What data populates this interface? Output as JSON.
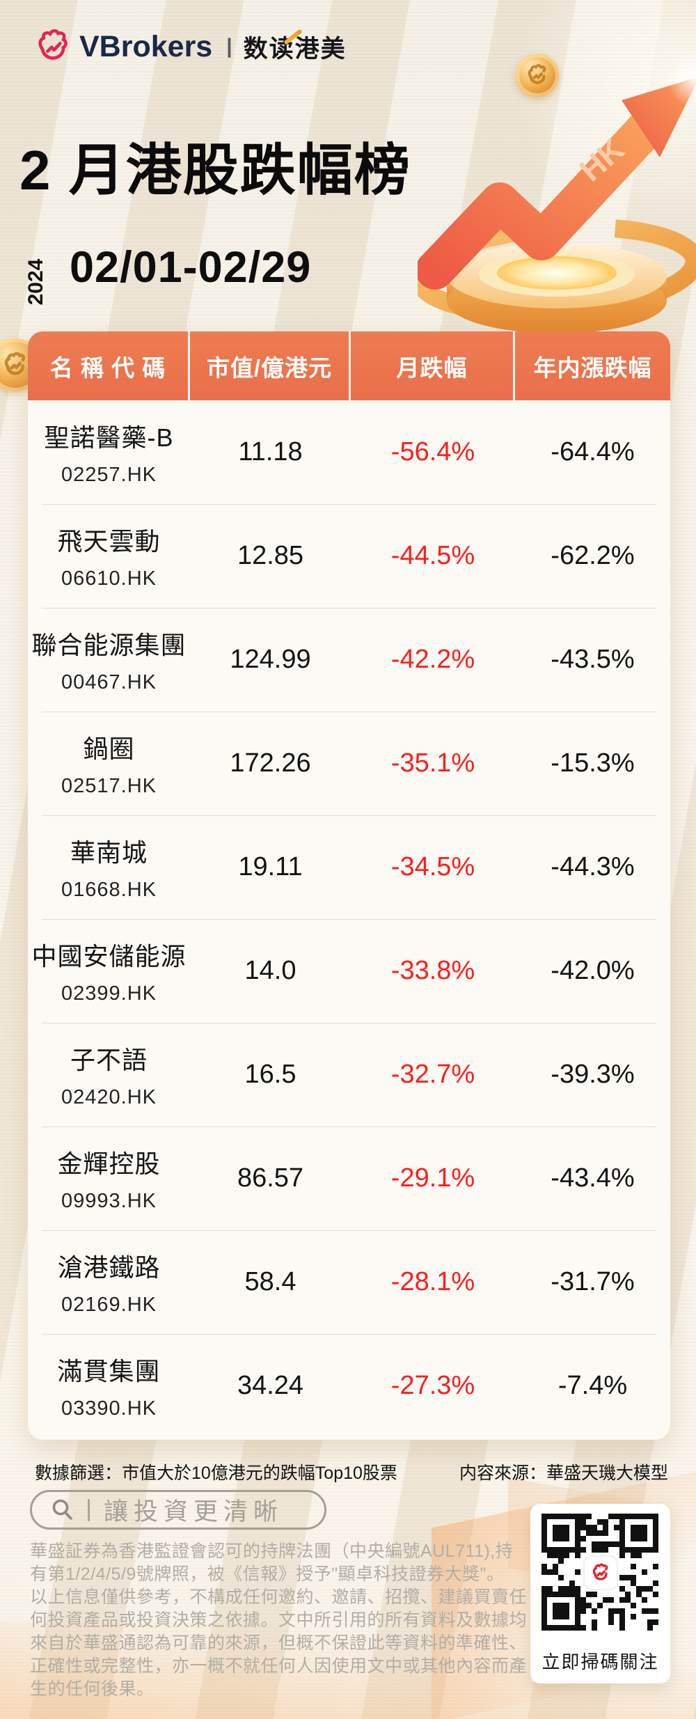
{
  "brand": {
    "name": "VBrokers",
    "separator": "|",
    "sub_brand": "数读港美"
  },
  "hero": {
    "title": "2 月港股跌幅榜",
    "year_vertical": "2024",
    "date_range": "02/01-02/29",
    "arrow_label": "HK"
  },
  "chart_data": {
    "type": "table",
    "title": "2 月港股跌幅榜",
    "period": "2024 02/01-02/29",
    "columns": [
      "名 稱 代 碼",
      "市值/億港元",
      "月跌幅",
      "年内漲跌幅"
    ],
    "rows": [
      {
        "name": "聖諾醫藥-B",
        "code": "02257.HK",
        "market_cap": "11.18",
        "month_drop": "-56.4%",
        "ytd_change": "-64.4%"
      },
      {
        "name": "飛天雲動",
        "code": "06610.HK",
        "market_cap": "12.85",
        "month_drop": "-44.5%",
        "ytd_change": "-62.2%"
      },
      {
        "name": "聯合能源集團",
        "code": "00467.HK",
        "market_cap": "124.99",
        "month_drop": "-42.2%",
        "ytd_change": "-43.5%"
      },
      {
        "name": "鍋圈",
        "code": "02517.HK",
        "market_cap": "172.26",
        "month_drop": "-35.1%",
        "ytd_change": "-15.3%"
      },
      {
        "name": "華南城",
        "code": "01668.HK",
        "market_cap": "19.11",
        "month_drop": "-34.5%",
        "ytd_change": "-44.3%"
      },
      {
        "name": "中國安儲能源",
        "code": "02399.HK",
        "market_cap": "14.0",
        "month_drop": "-33.8%",
        "ytd_change": "-42.0%"
      },
      {
        "name": "子不語",
        "code": "02420.HK",
        "market_cap": "16.5",
        "month_drop": "-32.7%",
        "ytd_change": "-39.3%"
      },
      {
        "name": "金輝控股",
        "code": "09993.HK",
        "market_cap": "86.57",
        "month_drop": "-29.1%",
        "ytd_change": "-43.4%"
      },
      {
        "name": "滄港鐵路",
        "code": "02169.HK",
        "market_cap": "58.4",
        "month_drop": "-28.1%",
        "ytd_change": "-31.7%"
      },
      {
        "name": "滿貫集團",
        "code": "03390.HK",
        "market_cap": "34.24",
        "month_drop": "-27.3%",
        "ytd_change": "-7.4%"
      }
    ]
  },
  "footnotes": {
    "filter": "數據篩選：市值大於10億港元的跌幅Top10股票",
    "source": "内容來源：華盛天璣大模型"
  },
  "search_banner": {
    "slogan": "讓投資更清晰"
  },
  "disclaimer": [
    "華盛証券為香港監證會認可的持牌法團（中央編號AUL711),持有第1/2/4/5/9號牌照，被《信報》授予\"顯卓科技證券大獎\"。",
    "以上信息僅供參考，不構成任何邀約、邀請、招攬、建議買賣任何投資產品或投資決策之依據。文中所引用的所有資料及數據均來自於華盛通認為可靠的來源，但概不保證此等資料的準確性、正確性或完整性，亦一概不就任何人因使用文中或其他內容而產生的任何後果。"
  ],
  "qr": {
    "caption": "立即掃碼關注"
  },
  "colors": {
    "header_orange": "#EE7C51",
    "decline_red": "#FE1D1D",
    "brand_navy": "#1B2847",
    "logo_red": "#E32552",
    "gold": "#EDA43C",
    "page_cream": "#F4EEE2"
  }
}
